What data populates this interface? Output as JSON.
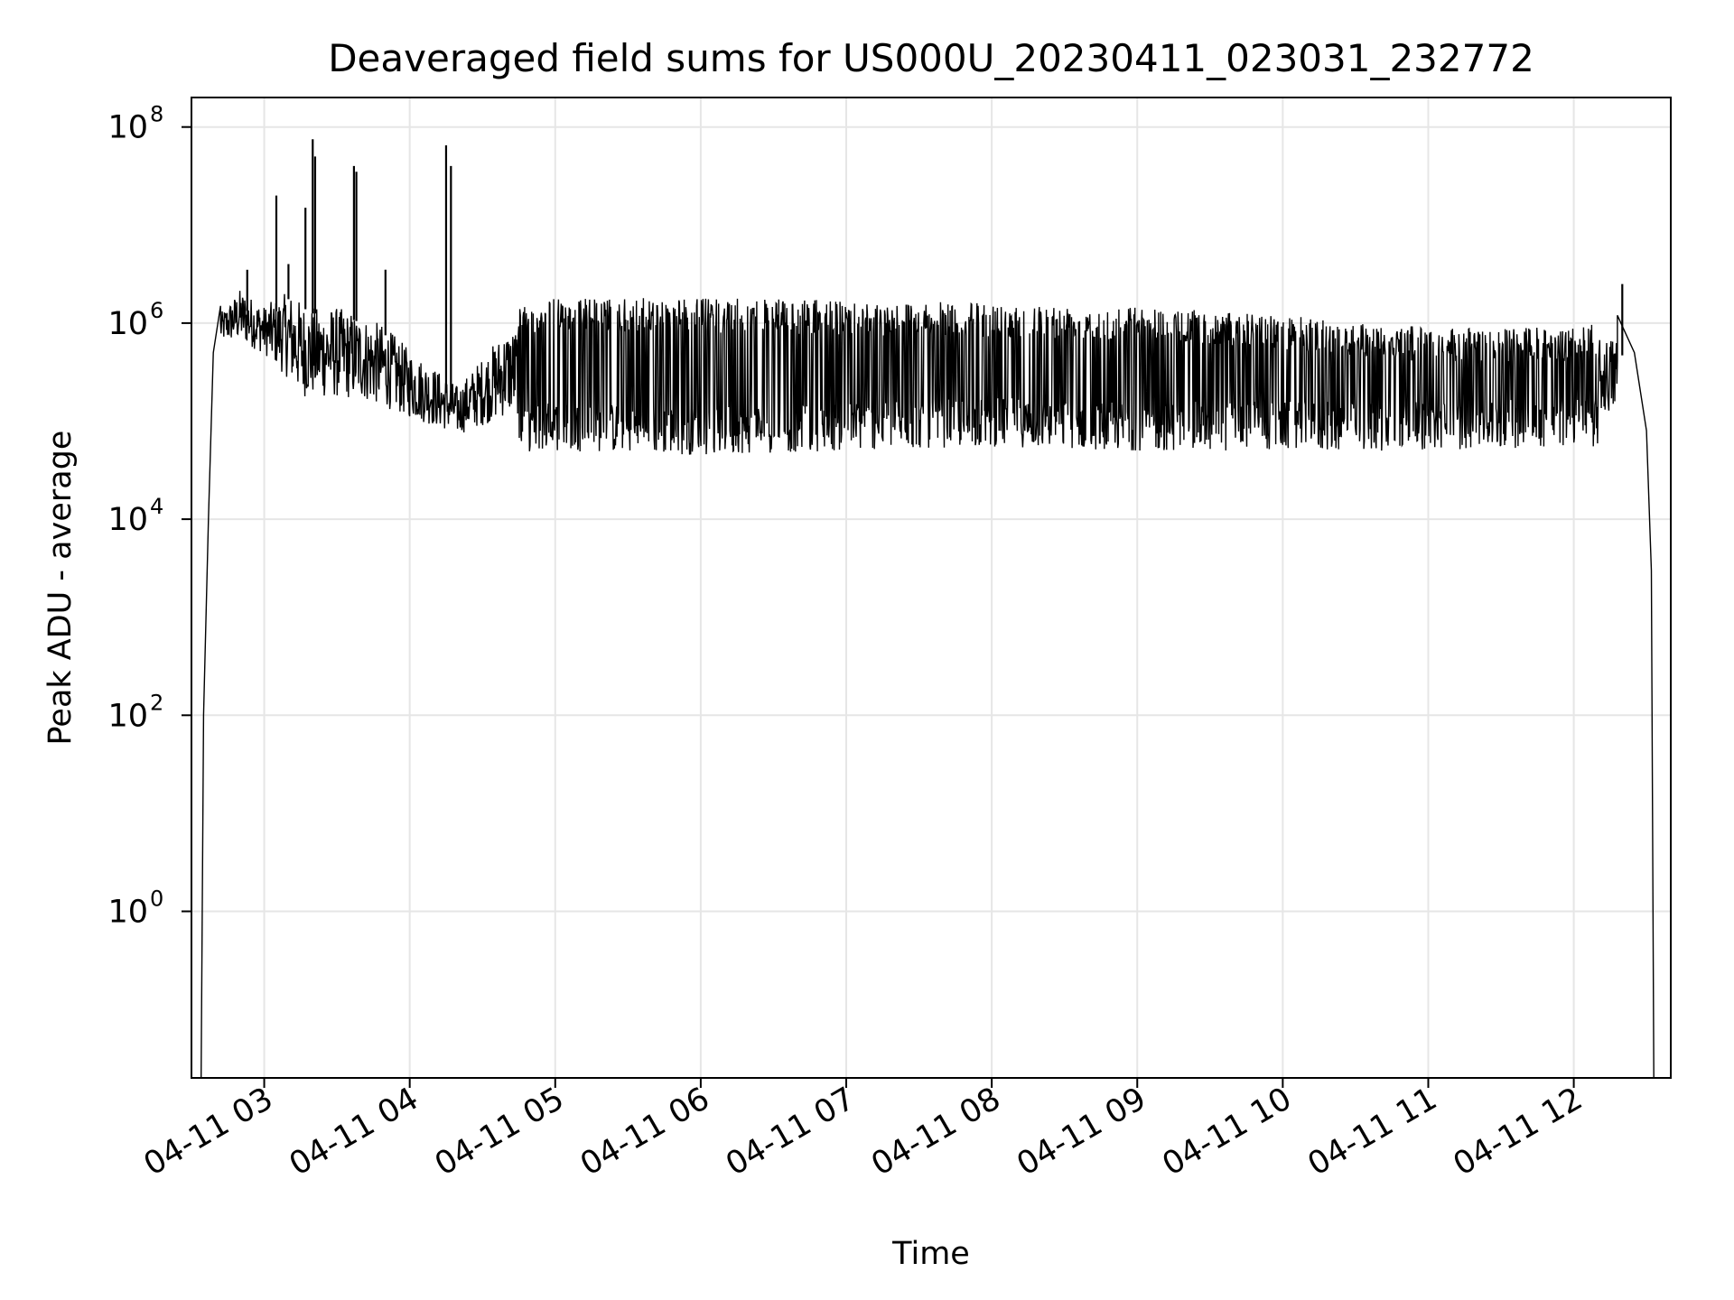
{
  "chart_data": {
    "type": "line",
    "title": "Deaveraged field sums for US000U_20230411_023031_232772",
    "xlabel": "Time",
    "ylabel": "Peak ADU - average",
    "yscale": "log",
    "grid": true,
    "line_color": "#000000",
    "grid_color": "#e6e6e6",
    "xlim": [
      "2023-04-11 02:30",
      "2023-04-11 12:40"
    ],
    "ylim": [
      0.02,
      200000000
    ],
    "x_ticks": [
      {
        "value": "2023-04-11 03:00",
        "label": "04-11 03"
      },
      {
        "value": "2023-04-11 04:00",
        "label": "04-11 04"
      },
      {
        "value": "2023-04-11 05:00",
        "label": "04-11 05"
      },
      {
        "value": "2023-04-11 06:00",
        "label": "04-11 06"
      },
      {
        "value": "2023-04-11 07:00",
        "label": "04-11 07"
      },
      {
        "value": "2023-04-11 08:00",
        "label": "04-11 08"
      },
      {
        "value": "2023-04-11 09:00",
        "label": "04-11 09"
      },
      {
        "value": "2023-04-11 10:00",
        "label": "04-11 10"
      },
      {
        "value": "2023-04-11 11:00",
        "label": "04-11 11"
      },
      {
        "value": "2023-04-11 12:00",
        "label": "04-11 12"
      }
    ],
    "y_ticks": [
      {
        "value": 1,
        "base": "10",
        "exp": "0"
      },
      {
        "value": 100,
        "base": "10",
        "exp": "2"
      },
      {
        "value": 10000,
        "base": "10",
        "exp": "4"
      },
      {
        "value": 1000000,
        "base": "10",
        "exp": "6"
      },
      {
        "value": 100000000,
        "base": "10",
        "exp": "8"
      }
    ],
    "series": [
      {
        "upper_envelope": [
          [
            "2023-04-11 02:34",
            0.02
          ],
          [
            "2023-04-11 02:35",
            100
          ],
          [
            "2023-04-11 02:37",
            10000
          ],
          [
            "2023-04-11 02:39",
            500000
          ],
          [
            "2023-04-11 02:42",
            1500000
          ],
          [
            "2023-04-11 02:50",
            3000000
          ],
          [
            "2023-04-11 03:00",
            2000000
          ],
          [
            "2023-04-11 03:10",
            3500000
          ],
          [
            "2023-04-11 03:20",
            2500000
          ],
          [
            "2023-04-11 03:30",
            2500000
          ],
          [
            "2023-04-11 03:40",
            2000000
          ],
          [
            "2023-04-11 03:50",
            1500000
          ],
          [
            "2023-04-11 04:00",
            800000
          ],
          [
            "2023-04-11 04:10",
            500000
          ],
          [
            "2023-04-11 04:20",
            300000
          ],
          [
            "2023-04-11 04:40",
            1500000
          ],
          [
            "2023-04-11 05:00",
            1800000
          ],
          [
            "2023-04-11 06:00",
            1800000
          ],
          [
            "2023-04-11 07:00",
            1700000
          ],
          [
            "2023-04-11 08:00",
            1600000
          ],
          [
            "2023-04-11 09:00",
            1500000
          ],
          [
            "2023-04-11 10:00",
            1200000
          ],
          [
            "2023-04-11 11:00",
            900000
          ],
          [
            "2023-04-11 12:00",
            900000
          ],
          [
            "2023-04-11 12:18",
            1200000
          ],
          [
            "2023-04-11 12:25",
            500000
          ],
          [
            "2023-04-11 12:30",
            80000
          ],
          [
            "2023-04-11 12:32",
            3000
          ],
          [
            "2023-04-11 12:33",
            0.02
          ]
        ],
        "lower_envelope": [
          [
            "2023-04-11 02:40",
            500000
          ],
          [
            "2023-04-11 03:00",
            300000
          ],
          [
            "2023-04-11 03:15",
            70000
          ],
          [
            "2023-04-11 03:40",
            70000
          ],
          [
            "2023-04-11 04:00",
            55000
          ],
          [
            "2023-04-11 04:20",
            45000
          ],
          [
            "2023-04-11 05:00",
            50000
          ],
          [
            "2023-04-11 06:00",
            45000
          ],
          [
            "2023-04-11 07:00",
            50000
          ],
          [
            "2023-04-11 08:00",
            55000
          ],
          [
            "2023-04-11 09:00",
            50000
          ],
          [
            "2023-04-11 10:00",
            50000
          ],
          [
            "2023-04-11 11:00",
            50000
          ],
          [
            "2023-04-11 12:00",
            55000
          ]
        ],
        "spikes": [
          [
            "2023-04-11 03:05",
            20000000
          ],
          [
            "2023-04-11 03:17",
            15000000
          ],
          [
            "2023-04-11 03:20",
            75000000
          ],
          [
            "2023-04-11 03:21",
            50000000
          ],
          [
            "2023-04-11 03:37",
            40000000
          ],
          [
            "2023-04-11 03:38",
            35000000
          ],
          [
            "2023-04-11 03:50",
            3500000
          ],
          [
            "2023-04-11 04:15",
            65000000
          ],
          [
            "2023-04-11 04:17",
            40000000
          ],
          [
            "2023-04-11 02:53",
            3500000
          ],
          [
            "2023-04-11 03:10",
            4000000
          ],
          [
            "2023-04-11 12:20",
            2500000
          ]
        ]
      }
    ]
  }
}
